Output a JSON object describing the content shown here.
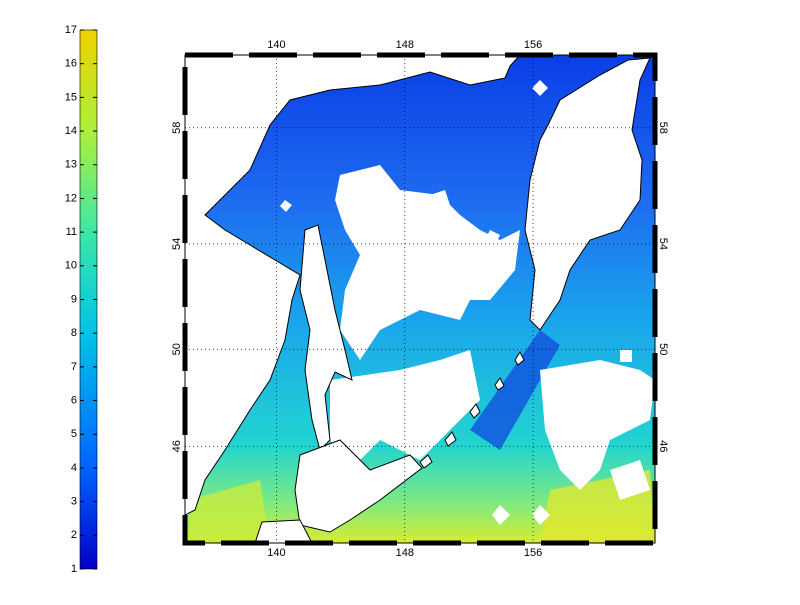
{
  "colorbar": {
    "clim": [
      1,
      17
    ],
    "ticks": [
      1,
      2,
      3,
      4,
      5,
      6,
      7,
      8,
      9,
      10,
      11,
      12,
      13,
      14,
      15,
      16,
      17
    ]
  },
  "map": {
    "projection": "mercator",
    "lonlim": [
      134.3,
      163.6
    ],
    "latlim": [
      41.7,
      60.3
    ],
    "lon_ticks": [
      140,
      148,
      156
    ],
    "lat_ticks": [
      46,
      50,
      54,
      58
    ],
    "grid": true
  }
}
